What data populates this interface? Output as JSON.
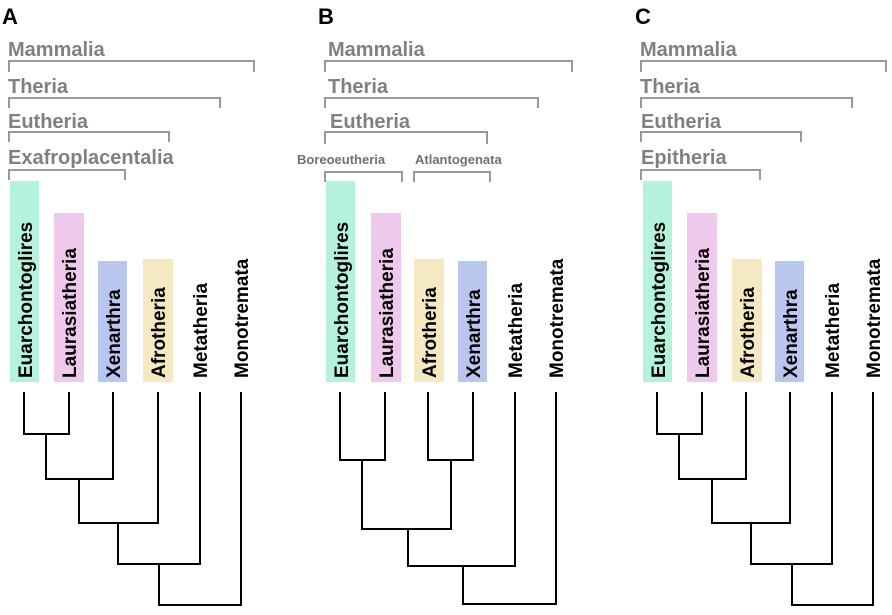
{
  "colors": {
    "euarchontoglires": "#b5f2dc",
    "laurasiatheria": "#efc9ec",
    "xenarthra": "#b9c6ee",
    "afrotheria": "#f5e9c1",
    "clade_text": "#808080",
    "bracket": "#999999",
    "tree": "#000000"
  },
  "panels": {
    "a": {
      "letter": "A",
      "clades": [
        "Mammalia",
        "Theria",
        "Eutheria",
        "Exafroplacentalia"
      ],
      "taxa": [
        "Euarchontoglires",
        "Laurasiatheria",
        "Xenarthra",
        "Afrotheria",
        "Metatheria",
        "Monotremata"
      ]
    },
    "b": {
      "letter": "B",
      "clades": [
        "Mammalia",
        "Theria",
        "Eutheria"
      ],
      "subclades": [
        "Boreoeutheria",
        "Atlantogenata"
      ],
      "taxa": [
        "Euarchontoglires",
        "Laurasiatheria",
        "Afrotheria",
        "Xenarthra",
        "Metatheria",
        "Monotremata"
      ]
    },
    "c": {
      "letter": "C",
      "clades": [
        "Mammalia",
        "Theria",
        "Eutheria",
        "Epitheria"
      ],
      "taxa": [
        "Euarchontoglires",
        "Laurasiatheria",
        "Afrotheria",
        "Xenarthra",
        "Metatheria",
        "Monotremata"
      ]
    }
  }
}
